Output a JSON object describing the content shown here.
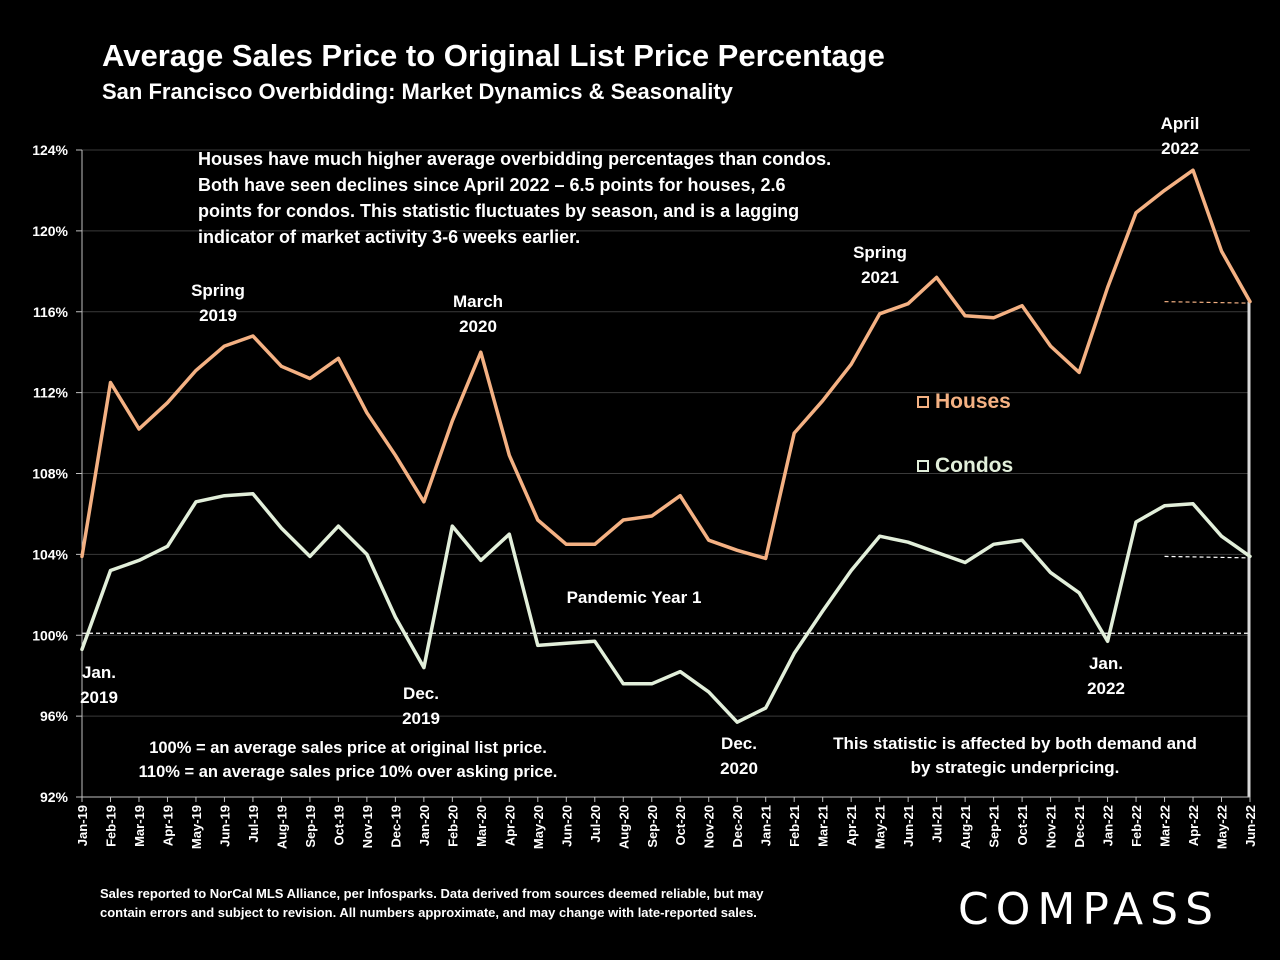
{
  "title": "Average Sales Price to Original List Price Percentage",
  "subtitle": "San Francisco Overbidding: Market Dynamics & Seasonality",
  "notes": {
    "top": "Houses have much higher average overbidding percentages than condos. Both have seen declines since April 2022 – 6.5 points for houses, 2.6 points for condos. This statistic fluctuates by season, and is a lagging indicator of market activity 3-6 weeks earlier.",
    "left_1": "100% = an average sales price at original list price.",
    "left_2": "110% = an average sales price 10% over asking price.",
    "right": "This statistic is affected by both demand and by strategic underpricing."
  },
  "annotations": {
    "jan2019_1": "Jan.",
    "jan2019_2": "2019",
    "spring2019_1": "Spring",
    "spring2019_2": "2019",
    "dec2019_1": "Dec.",
    "dec2019_2": "2019",
    "march2020_1": "March",
    "march2020_2": "2020",
    "pandemic": "Pandemic Year 1",
    "dec2020_1": "Dec.",
    "dec2020_2": "2020",
    "spring2021_1": "Spring",
    "spring2021_2": "2021",
    "jan2022_1": "Jan.",
    "jan2022_2": "2022",
    "april2022_1": "April",
    "april2022_2": "2022"
  },
  "footer": {
    "line1": "Sales reported to NorCal MLS Alliance, per Infosparks. Data derived from sources deemed reliable, but may",
    "line2": "contain errors and subject to revision. All numbers approximate, and may change with late-reported sales."
  },
  "brand": "COMPASS",
  "colors": {
    "houses": "#f4b183",
    "condos": "#e2efda",
    "background": "#000000",
    "grid": "#3a3a3a"
  },
  "chart_data": {
    "type": "line",
    "title": "Average Sales Price to Original List Price Percentage",
    "subtitle": "San Francisco Overbidding: Market Dynamics & Seasonality",
    "ylim": [
      92,
      124
    ],
    "yticks": [
      92,
      96,
      100,
      104,
      108,
      112,
      116,
      120,
      124
    ],
    "ytick_labels": [
      "92%",
      "96%",
      "100%",
      "104%",
      "108%",
      "112%",
      "116%",
      "120%",
      "124%"
    ],
    "grid": true,
    "legend_position": "center-right",
    "reference_line": 100.1,
    "categories": [
      "Jan-19",
      "Feb-19",
      "Mar-19",
      "Apr-19",
      "May-19",
      "Jun-19",
      "Jul-19",
      "Aug-19",
      "Sep-19",
      "Oct-19",
      "Nov-19",
      "Dec-19",
      "Jan-20",
      "Feb-20",
      "Mar-20",
      "Apr-20",
      "May-20",
      "Jun-20",
      "Jul-20",
      "Aug-20",
      "Sep-20",
      "Oct-20",
      "Nov-20",
      "Dec-20",
      "Jan-21",
      "Feb-21",
      "Mar-21",
      "Apr-21",
      "May-21",
      "Jun-21",
      "Jul-21",
      "Aug-21",
      "Sep-21",
      "Oct-21",
      "Nov-21",
      "Dec-21",
      "Jan-22",
      "Feb-22",
      "Mar-22",
      "Apr-22",
      "May-22",
      "Jun-22"
    ],
    "series": [
      {
        "name": "Houses",
        "values": [
          103.9,
          112.5,
          110.2,
          111.5,
          113.1,
          114.3,
          114.8,
          113.3,
          112.7,
          113.7,
          111.0,
          108.9,
          106.6,
          110.6,
          114.0,
          108.9,
          105.7,
          104.5,
          104.5,
          105.7,
          105.9,
          106.9,
          104.7,
          104.2,
          103.8,
          110.0,
          111.6,
          113.4,
          115.9,
          116.4,
          117.7,
          115.8,
          115.7,
          116.3,
          114.3,
          113.0,
          117.2,
          120.9,
          122.0,
          123.0,
          119.0,
          116.5
        ]
      },
      {
        "name": "Condos",
        "values": [
          99.3,
          103.2,
          103.7,
          104.4,
          106.6,
          106.9,
          107.0,
          105.3,
          103.9,
          105.4,
          104.0,
          100.9,
          98.4,
          105.4,
          103.7,
          105.0,
          99.5,
          99.6,
          99.7,
          97.6,
          97.6,
          98.2,
          97.2,
          95.7,
          96.4,
          99.1,
          101.2,
          103.2,
          104.9,
          104.6,
          104.1,
          103.6,
          104.5,
          104.7,
          103.1,
          102.1,
          99.7,
          105.6,
          106.4,
          106.5,
          104.9,
          103.9
        ]
      }
    ],
    "dashed_levels": {
      "houses": 116.5,
      "condos": 103.9
    }
  }
}
